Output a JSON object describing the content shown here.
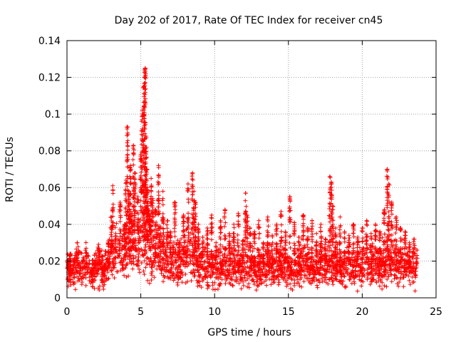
{
  "chart_data": {
    "type": "scatter",
    "title": "Day 202 of 2017, Rate Of TEC Index for receiver cn45",
    "xlabel": "GPS time / hours",
    "ylabel": "ROTI / TECUs",
    "xlim": [
      0,
      25
    ],
    "ylim": [
      0,
      0.14
    ],
    "x_ticks": [
      "0",
      "5",
      "10",
      "15",
      "20",
      "25"
    ],
    "y_ticks": [
      "0",
      "0.02",
      "0.04",
      "0.06",
      "0.08",
      "0.1",
      "0.12",
      "0.14"
    ],
    "grid": true,
    "marker": "+",
    "colors": {
      "series": "#ff0000"
    },
    "series": [
      {
        "x": [
          0.1,
          0.2,
          0.3,
          0.5,
          0.7,
          0.9,
          1.1,
          1.3,
          1.6,
          1.9,
          2.2,
          2.5,
          2.8,
          3.0,
          3.1,
          3.3,
          3.6,
          3.9,
          4.0,
          4.1,
          4.2,
          4.3,
          4.4,
          4.5,
          4.6,
          4.8,
          5.0,
          5.1,
          5.2,
          5.25,
          5.3,
          5.35,
          5.4,
          5.45,
          5.5,
          5.6,
          5.7,
          5.8,
          6.0,
          6.2,
          6.3,
          6.5,
          6.8,
          7.0,
          7.3,
          7.6,
          7.9,
          8.2,
          8.5,
          8.6,
          8.7,
          8.9,
          9.2,
          9.5,
          9.8,
          10.1,
          10.4,
          10.7,
          11.0,
          11.3,
          11.6,
          11.9,
          12.1,
          12.2,
          12.4,
          12.7,
          13.0,
          13.3,
          13.6,
          13.9,
          14.2,
          14.5,
          14.8,
          15.1,
          15.4,
          15.7,
          16.0,
          16.3,
          16.6,
          16.9,
          17.2,
          17.5,
          17.8,
          17.9,
          18.0,
          18.2,
          18.5,
          18.8,
          19.1,
          19.4,
          19.7,
          20.0,
          20.3,
          20.6,
          20.9,
          21.2,
          21.5,
          21.7,
          21.8,
          22.0,
          22.3,
          22.6,
          22.9,
          23.2,
          23.5,
          23.7
        ],
        "y": [
          0.018,
          0.024,
          0.013,
          0.021,
          0.03,
          0.016,
          0.022,
          0.027,
          0.014,
          0.02,
          0.025,
          0.017,
          0.031,
          0.044,
          0.061,
          0.035,
          0.052,
          0.04,
          0.064,
          0.093,
          0.058,
          0.072,
          0.046,
          0.083,
          0.068,
          0.055,
          0.078,
          0.102,
          0.115,
          0.12,
          0.125,
          0.088,
          0.07,
          0.06,
          0.05,
          0.045,
          0.065,
          0.054,
          0.048,
          0.072,
          0.039,
          0.058,
          0.042,
          0.036,
          0.052,
          0.03,
          0.045,
          0.062,
          0.068,
          0.058,
          0.052,
          0.04,
          0.033,
          0.038,
          0.045,
          0.03,
          0.042,
          0.048,
          0.035,
          0.04,
          0.046,
          0.031,
          0.057,
          0.045,
          0.038,
          0.036,
          0.042,
          0.03,
          0.044,
          0.034,
          0.04,
          0.047,
          0.036,
          0.055,
          0.041,
          0.033,
          0.045,
          0.038,
          0.042,
          0.035,
          0.04,
          0.032,
          0.066,
          0.063,
          0.05,
          0.038,
          0.044,
          0.036,
          0.034,
          0.04,
          0.033,
          0.038,
          0.042,
          0.035,
          0.04,
          0.036,
          0.048,
          0.07,
          0.062,
          0.052,
          0.044,
          0.038,
          0.036,
          0.03,
          0.032,
          0.026
        ],
        "base": {
          "x": [
            0.1,
            0.4,
            0.7,
            1.0,
            1.3,
            1.6,
            1.9,
            2.2,
            2.5,
            2.8,
            3.1,
            3.4,
            3.7,
            4.0,
            4.3,
            4.6,
            4.9,
            5.2,
            5.5,
            5.8,
            6.1,
            6.4,
            6.7,
            7.0,
            7.3,
            7.6,
            7.9,
            8.2,
            8.5,
            8.8,
            9.1,
            9.4,
            9.7,
            10.0,
            10.3,
            10.6,
            10.9,
            11.2,
            11.5,
            11.8,
            12.1,
            12.4,
            12.7,
            13.0,
            13.3,
            13.6,
            13.9,
            14.2,
            14.5,
            14.8,
            15.1,
            15.4,
            15.7,
            16.0,
            16.3,
            16.6,
            16.9,
            17.2,
            17.5,
            17.8,
            18.1,
            18.4,
            18.7,
            19.0,
            19.3,
            19.6,
            19.9,
            20.2,
            20.5,
            20.8,
            21.1,
            21.4,
            21.7,
            22.0,
            22.3,
            22.6,
            22.9,
            23.2,
            23.5,
            23.7
          ],
          "y": [
            0.016,
            0.014,
            0.018,
            0.015,
            0.017,
            0.013,
            0.016,
            0.019,
            0.015,
            0.018,
            0.021,
            0.024,
            0.022,
            0.026,
            0.028,
            0.03,
            0.027,
            0.032,
            0.029,
            0.025,
            0.027,
            0.024,
            0.022,
            0.02,
            0.021,
            0.019,
            0.022,
            0.024,
            0.023,
            0.02,
            0.018,
            0.019,
            0.017,
            0.016,
            0.018,
            0.017,
            0.016,
            0.018,
            0.017,
            0.016,
            0.019,
            0.018,
            0.017,
            0.016,
            0.017,
            0.018,
            0.017,
            0.016,
            0.018,
            0.017,
            0.016,
            0.018,
            0.017,
            0.019,
            0.018,
            0.017,
            0.016,
            0.018,
            0.017,
            0.019,
            0.018,
            0.017,
            0.016,
            0.018,
            0.017,
            0.016,
            0.017,
            0.018,
            0.017,
            0.019,
            0.018,
            0.02,
            0.021,
            0.02,
            0.019,
            0.018,
            0.017,
            0.016,
            0.017,
            0.016
          ]
        }
      }
    ]
  }
}
